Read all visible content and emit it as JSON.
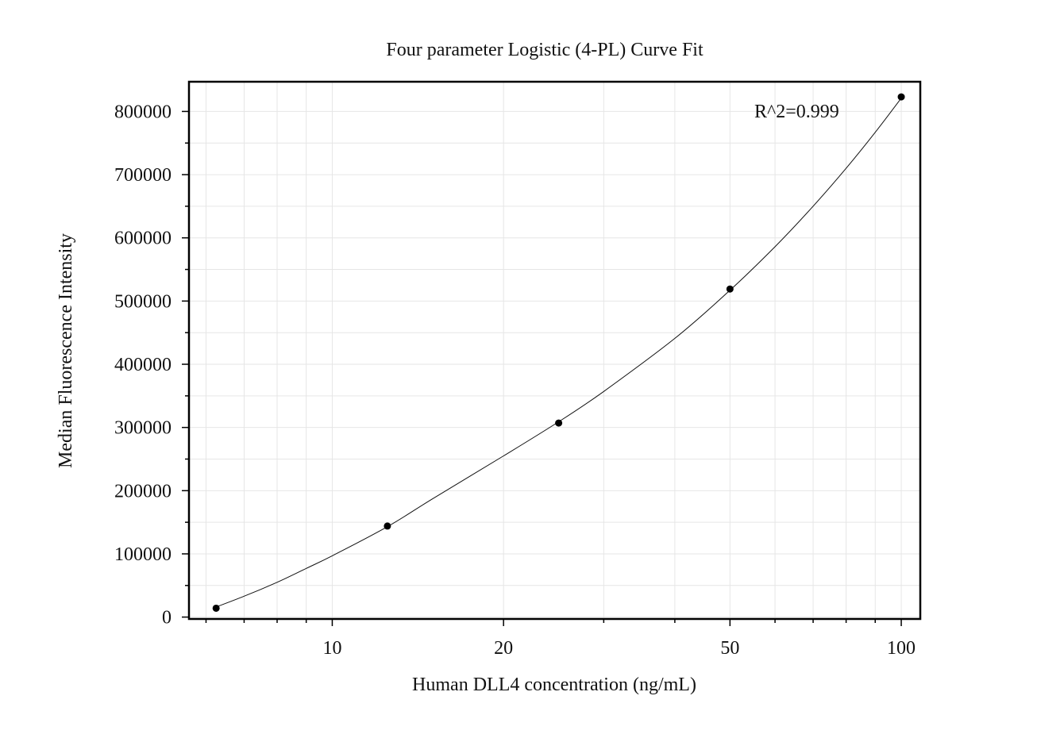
{
  "chart_data": {
    "type": "scatter",
    "title": "Four parameter Logistic (4-PL) Curve Fit",
    "xlabel": "Human DLL4 concentration (ng/mL)",
    "ylabel": "Median Fluorescence Intensity",
    "x_scale": "log",
    "xlim": [
      5.6,
      108
    ],
    "ylim": [
      -3000,
      847000
    ],
    "x_ticks": [
      10,
      20,
      50,
      100
    ],
    "x_tick_labels": [
      "10",
      "20",
      "50",
      "100"
    ],
    "x_minor_ticks": [
      6,
      7,
      8,
      9,
      30,
      40,
      60,
      70,
      80,
      90
    ],
    "y_ticks": [
      0,
      100000,
      200000,
      300000,
      400000,
      500000,
      600000,
      700000,
      800000
    ],
    "y_tick_labels": [
      "0",
      "100000",
      "200000",
      "300000",
      "400000",
      "500000",
      "600000",
      "700000",
      "800000"
    ],
    "y_minor_ticks": [
      50000,
      150000,
      250000,
      350000,
      450000,
      550000,
      650000,
      750000
    ],
    "grid": true,
    "annotation": "R^2=0.999",
    "series": [
      {
        "points": [
          {
            "x": 6.25,
            "y": 14000
          },
          {
            "x": 12.5,
            "y": 144000
          },
          {
            "x": 25,
            "y": 307000
          },
          {
            "x": 50,
            "y": 519000
          },
          {
            "x": 100,
            "y": 823000
          }
        ]
      }
    ],
    "fit_curve": [
      {
        "x": 6.25,
        "y": 16000
      },
      {
        "x": 7,
        "y": 33000
      },
      {
        "x": 8,
        "y": 55000
      },
      {
        "x": 9,
        "y": 77000
      },
      {
        "x": 10,
        "y": 97000
      },
      {
        "x": 12.5,
        "y": 143000
      },
      {
        "x": 15,
        "y": 187000
      },
      {
        "x": 20,
        "y": 255000
      },
      {
        "x": 25,
        "y": 309000
      },
      {
        "x": 30,
        "y": 357000
      },
      {
        "x": 40,
        "y": 441000
      },
      {
        "x": 50,
        "y": 517000
      },
      {
        "x": 60,
        "y": 586000
      },
      {
        "x": 70,
        "y": 650000
      },
      {
        "x": 80,
        "y": 710000
      },
      {
        "x": 90,
        "y": 767000
      },
      {
        "x": 100,
        "y": 821000
      }
    ]
  }
}
